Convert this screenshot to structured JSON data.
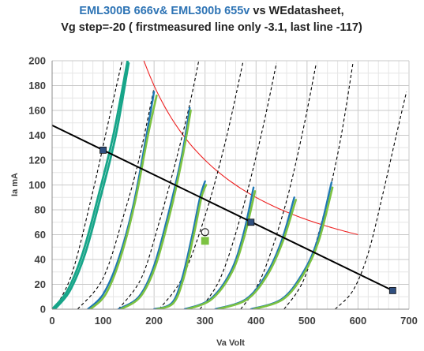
{
  "chart_data": {
    "type": "line",
    "title": {
      "part1": "EML300B 666v& EML300b 655v",
      "part2": " vs WEdatasheet,",
      "line2": "Vg step=-20 ( firstmeasured  line only -3.1, last line -117)"
    },
    "xlabel": "Va Volt",
    "ylabel": "Ia mA",
    "xlim": [
      0,
      700
    ],
    "ylim": [
      0,
      200
    ],
    "x_ticks": [
      0,
      100,
      200,
      300,
      400,
      500,
      600,
      700
    ],
    "y_ticks": [
      0,
      20,
      40,
      60,
      80,
      100,
      120,
      140,
      160,
      180,
      200
    ],
    "grid": true,
    "legend": "none",
    "colors": {
      "title_blue": "#2E74B5",
      "title_dark": "#222222",
      "datasheet": "#000000",
      "tube1": "#1F78B4",
      "tube2": "#7CC242",
      "first_curve": "#17A589",
      "load_line": "#000000",
      "dissipation": "#EE2222",
      "marker_fill": "#2F4F7F"
    },
    "series": [
      {
        "kind": "datasheet",
        "points": [
          [
            5,
            0
          ],
          [
            40,
            30
          ],
          [
            80,
            95
          ],
          [
            110,
            150
          ],
          [
            140,
            205
          ]
        ]
      },
      {
        "kind": "datasheet",
        "points": [
          [
            50,
            0
          ],
          [
            100,
            25
          ],
          [
            140,
            75
          ],
          [
            170,
            120
          ],
          [
            200,
            178
          ]
        ]
      },
      {
        "kind": "datasheet",
        "points": [
          [
            130,
            0
          ],
          [
            175,
            25
          ],
          [
            210,
            70
          ],
          [
            240,
            115
          ],
          [
            270,
            165
          ],
          [
            290,
            205
          ]
        ]
      },
      {
        "kind": "datasheet",
        "points": [
          [
            210,
            0
          ],
          [
            255,
            25
          ],
          [
            300,
            75
          ],
          [
            340,
            135
          ],
          [
            375,
            200
          ]
        ]
      },
      {
        "kind": "datasheet",
        "points": [
          [
            290,
            0
          ],
          [
            330,
            25
          ],
          [
            370,
            75
          ],
          [
            410,
            140
          ],
          [
            440,
            198
          ]
        ]
      },
      {
        "kind": "datasheet",
        "points": [
          [
            370,
            0
          ],
          [
            410,
            25
          ],
          [
            455,
            80
          ],
          [
            490,
            140
          ],
          [
            518,
            198
          ]
        ]
      },
      {
        "kind": "datasheet",
        "points": [
          [
            455,
            0
          ],
          [
            495,
            25
          ],
          [
            535,
            80
          ],
          [
            565,
            135
          ],
          [
            590,
            198
          ]
        ]
      },
      {
        "kind": "datasheet",
        "points": [
          [
            555,
            0
          ],
          [
            590,
            15
          ],
          [
            620,
            45
          ],
          [
            650,
            95
          ],
          [
            675,
            140
          ],
          [
            695,
            175
          ]
        ]
      },
      {
        "kind": "measured_first",
        "points": [
          [
            0,
            0
          ],
          [
            30,
            15
          ],
          [
            60,
            45
          ],
          [
            90,
            90
          ],
          [
            120,
            140
          ],
          [
            148,
            200
          ]
        ]
      },
      {
        "kind": "measured_first",
        "points": [
          [
            5,
            0
          ],
          [
            35,
            15
          ],
          [
            65,
            45
          ],
          [
            95,
            90
          ],
          [
            125,
            140
          ],
          [
            150,
            198
          ]
        ]
      },
      {
        "kind": "measured_tube1",
        "points": [
          [
            70,
            0
          ],
          [
            100,
            12
          ],
          [
            130,
            40
          ],
          [
            160,
            85
          ],
          [
            185,
            140
          ],
          [
            200,
            175
          ]
        ]
      },
      {
        "kind": "measured_tube2",
        "points": [
          [
            75,
            0
          ],
          [
            105,
            12
          ],
          [
            133,
            40
          ],
          [
            162,
            85
          ],
          [
            188,
            140
          ],
          [
            205,
            172
          ]
        ]
      },
      {
        "kind": "measured_tube1",
        "points": [
          [
            130,
            0
          ],
          [
            170,
            10
          ],
          [
            200,
            35
          ],
          [
            230,
            80
          ],
          [
            255,
            125
          ],
          [
            270,
            162
          ]
        ]
      },
      {
        "kind": "measured_tube2",
        "points": [
          [
            135,
            0
          ],
          [
            173,
            10
          ],
          [
            203,
            35
          ],
          [
            233,
            80
          ],
          [
            257,
            125
          ],
          [
            272,
            160
          ]
        ]
      },
      {
        "kind": "measured_tube1",
        "points": [
          [
            200,
            0
          ],
          [
            235,
            5
          ],
          [
            255,
            25
          ],
          [
            275,
            60
          ],
          [
            290,
            90
          ],
          [
            300,
            103
          ]
        ]
      },
      {
        "kind": "measured_tube2",
        "points": [
          [
            205,
            0
          ],
          [
            238,
            5
          ],
          [
            258,
            25
          ],
          [
            278,
            60
          ],
          [
            293,
            90
          ],
          [
            302,
            100
          ]
        ]
      },
      {
        "kind": "measured_tube1",
        "points": [
          [
            260,
            0
          ],
          [
            310,
            8
          ],
          [
            350,
            30
          ],
          [
            375,
            60
          ],
          [
            395,
            98
          ]
        ]
      },
      {
        "kind": "measured_tube2",
        "points": [
          [
            265,
            0
          ],
          [
            313,
            8
          ],
          [
            353,
            30
          ],
          [
            378,
            60
          ],
          [
            398,
            95
          ]
        ]
      },
      {
        "kind": "measured_tube1",
        "points": [
          [
            320,
            0
          ],
          [
            380,
            8
          ],
          [
            420,
            28
          ],
          [
            450,
            55
          ],
          [
            475,
            90
          ]
        ]
      },
      {
        "kind": "measured_tube2",
        "points": [
          [
            325,
            0
          ],
          [
            383,
            8
          ],
          [
            423,
            28
          ],
          [
            453,
            55
          ],
          [
            478,
            88
          ]
        ]
      },
      {
        "kind": "measured_tube1",
        "points": [
          [
            390,
            0
          ],
          [
            450,
            8
          ],
          [
            490,
            28
          ],
          [
            520,
            55
          ],
          [
            548,
            102
          ]
        ]
      },
      {
        "kind": "measured_tube2",
        "points": [
          [
            395,
            0
          ],
          [
            453,
            8
          ],
          [
            493,
            28
          ],
          [
            523,
            55
          ],
          [
            550,
            98
          ]
        ]
      }
    ],
    "load_line": {
      "points": [
        [
          0,
          148
        ],
        [
          668,
          15
        ]
      ]
    },
    "load_line_markers": [
      [
        100,
        128
      ],
      [
        390,
        70
      ],
      [
        668,
        15
      ]
    ],
    "dissipation_curve": {
      "watts": 36,
      "x_range": [
        180,
        600
      ]
    },
    "operating_point": {
      "circle": [
        300,
        62
      ],
      "square": [
        300,
        55
      ]
    }
  }
}
